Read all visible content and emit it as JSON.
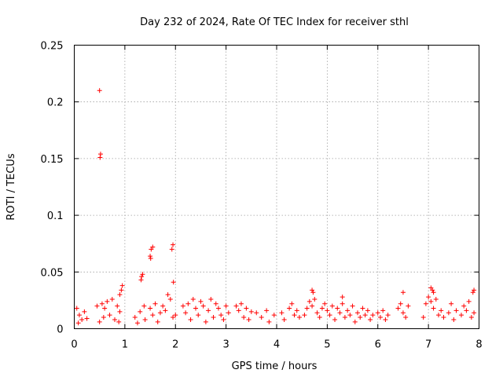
{
  "colors": {
    "points": "#ff0000",
    "grid": "#a0a0a0",
    "axes": "#000000"
  },
  "chart_data": {
    "type": "scatter",
    "title": "Day 232 of 2024, Rate Of TEC Index for receiver sthl",
    "xlabel": "GPS time / hours",
    "ylabel": "ROTI / TECUs",
    "xlim": [
      0,
      8
    ],
    "ylim": [
      0,
      0.25
    ],
    "grid": true,
    "marker": "+",
    "xticks": [
      0,
      1,
      2,
      3,
      4,
      5,
      6,
      7,
      8
    ],
    "xtick_labels": [
      "0",
      "1",
      "2",
      "3",
      "4",
      "5",
      "6",
      "7",
      "8"
    ],
    "yticks": [
      0,
      0.05,
      0.1,
      0.15,
      0.2,
      0.25
    ],
    "ytick_labels": [
      "0",
      "0.05",
      "0.1",
      "0.15",
      "0.2",
      "0.25"
    ],
    "series": [
      {
        "name": "ROTI",
        "points": [
          [
            0.5,
            0.21
          ],
          [
            0.52,
            0.154
          ],
          [
            0.51,
            0.151
          ],
          [
            1.55,
            0.072
          ],
          [
            1.52,
            0.07
          ],
          [
            1.5,
            0.064
          ],
          [
            1.51,
            0.062
          ],
          [
            1.95,
            0.074
          ],
          [
            1.93,
            0.07
          ],
          [
            1.96,
            0.041
          ],
          [
            1.35,
            0.048
          ],
          [
            1.33,
            0.046
          ],
          [
            1.32,
            0.043
          ],
          [
            0.95,
            0.038
          ],
          [
            0.93,
            0.034
          ],
          [
            0.9,
            0.03
          ],
          [
            4.7,
            0.034
          ],
          [
            4.72,
            0.032
          ],
          [
            6.5,
            0.032
          ],
          [
            7.05,
            0.036
          ],
          [
            7.08,
            0.034
          ],
          [
            7.1,
            0.032
          ],
          [
            7.9,
            0.034
          ],
          [
            7.88,
            0.032
          ],
          [
            5.3,
            0.028
          ],
          [
            0.05,
            0.018
          ],
          [
            0.1,
            0.012
          ],
          [
            0.15,
            0.008
          ],
          [
            0.2,
            0.015
          ],
          [
            0.08,
            0.005
          ],
          [
            0.25,
            0.009
          ],
          [
            0.45,
            0.02
          ],
          [
            0.55,
            0.022
          ],
          [
            0.6,
            0.018
          ],
          [
            0.65,
            0.024
          ],
          [
            0.7,
            0.012
          ],
          [
            0.75,
            0.026
          ],
          [
            0.5,
            0.006
          ],
          [
            0.58,
            0.01
          ],
          [
            0.85,
            0.02
          ],
          [
            0.9,
            0.015
          ],
          [
            0.88,
            0.006
          ],
          [
            0.8,
            0.008
          ],
          [
            1.2,
            0.01
          ],
          [
            1.25,
            0.005
          ],
          [
            1.3,
            0.015
          ],
          [
            1.38,
            0.02
          ],
          [
            1.4,
            0.008
          ],
          [
            1.5,
            0.018
          ],
          [
            1.55,
            0.012
          ],
          [
            1.6,
            0.022
          ],
          [
            1.65,
            0.006
          ],
          [
            1.7,
            0.014
          ],
          [
            1.75,
            0.02
          ],
          [
            1.8,
            0.016
          ],
          [
            1.85,
            0.03
          ],
          [
            1.9,
            0.026
          ],
          [
            1.95,
            0.01
          ],
          [
            2.0,
            0.012
          ],
          [
            2.15,
            0.02
          ],
          [
            2.2,
            0.014
          ],
          [
            2.25,
            0.022
          ],
          [
            2.3,
            0.008
          ],
          [
            2.35,
            0.026
          ],
          [
            2.4,
            0.018
          ],
          [
            2.45,
            0.012
          ],
          [
            2.5,
            0.024
          ],
          [
            2.55,
            0.02
          ],
          [
            2.6,
            0.006
          ],
          [
            2.65,
            0.016
          ],
          [
            2.7,
            0.026
          ],
          [
            2.75,
            0.01
          ],
          [
            2.8,
            0.022
          ],
          [
            2.85,
            0.018
          ],
          [
            2.9,
            0.012
          ],
          [
            2.95,
            0.008
          ],
          [
            3.0,
            0.02
          ],
          [
            3.05,
            0.014
          ],
          [
            3.2,
            0.02
          ],
          [
            3.25,
            0.016
          ],
          [
            3.3,
            0.022
          ],
          [
            3.35,
            0.01
          ],
          [
            3.4,
            0.018
          ],
          [
            3.45,
            0.008
          ],
          [
            3.5,
            0.015
          ],
          [
            3.6,
            0.014
          ],
          [
            3.7,
            0.01
          ],
          [
            3.8,
            0.016
          ],
          [
            3.85,
            0.006
          ],
          [
            3.95,
            0.012
          ],
          [
            4.1,
            0.014
          ],
          [
            4.15,
            0.008
          ],
          [
            4.25,
            0.018
          ],
          [
            4.3,
            0.022
          ],
          [
            4.35,
            0.012
          ],
          [
            4.4,
            0.016
          ],
          [
            4.45,
            0.01
          ],
          [
            4.55,
            0.012
          ],
          [
            4.6,
            0.018
          ],
          [
            4.65,
            0.024
          ],
          [
            4.7,
            0.02
          ],
          [
            4.75,
            0.026
          ],
          [
            4.8,
            0.014
          ],
          [
            4.85,
            0.01
          ],
          [
            4.9,
            0.018
          ],
          [
            4.95,
            0.022
          ],
          [
            5.0,
            0.016
          ],
          [
            5.05,
            0.012
          ],
          [
            5.1,
            0.02
          ],
          [
            5.15,
            0.008
          ],
          [
            5.2,
            0.018
          ],
          [
            5.25,
            0.014
          ],
          [
            5.3,
            0.022
          ],
          [
            5.35,
            0.01
          ],
          [
            5.4,
            0.016
          ],
          [
            5.45,
            0.012
          ],
          [
            5.5,
            0.02
          ],
          [
            5.55,
            0.006
          ],
          [
            5.6,
            0.014
          ],
          [
            5.65,
            0.01
          ],
          [
            5.7,
            0.018
          ],
          [
            5.75,
            0.012
          ],
          [
            5.8,
            0.016
          ],
          [
            5.85,
            0.008
          ],
          [
            5.9,
            0.012
          ],
          [
            6.0,
            0.014
          ],
          [
            6.05,
            0.01
          ],
          [
            6.1,
            0.016
          ],
          [
            6.15,
            0.008
          ],
          [
            6.2,
            0.012
          ],
          [
            6.4,
            0.018
          ],
          [
            6.45,
            0.022
          ],
          [
            6.5,
            0.014
          ],
          [
            6.55,
            0.01
          ],
          [
            6.6,
            0.02
          ],
          [
            6.9,
            0.01
          ],
          [
            6.95,
            0.022
          ],
          [
            7.0,
            0.028
          ],
          [
            7.05,
            0.024
          ],
          [
            7.1,
            0.018
          ],
          [
            7.15,
            0.026
          ],
          [
            7.2,
            0.012
          ],
          [
            7.25,
            0.016
          ],
          [
            7.3,
            0.01
          ],
          [
            7.4,
            0.014
          ],
          [
            7.45,
            0.022
          ],
          [
            7.5,
            0.008
          ],
          [
            7.55,
            0.016
          ],
          [
            7.65,
            0.012
          ],
          [
            7.7,
            0.02
          ],
          [
            7.75,
            0.016
          ],
          [
            7.8,
            0.024
          ],
          [
            7.85,
            0.01
          ],
          [
            7.9,
            0.014
          ]
        ]
      }
    ]
  }
}
